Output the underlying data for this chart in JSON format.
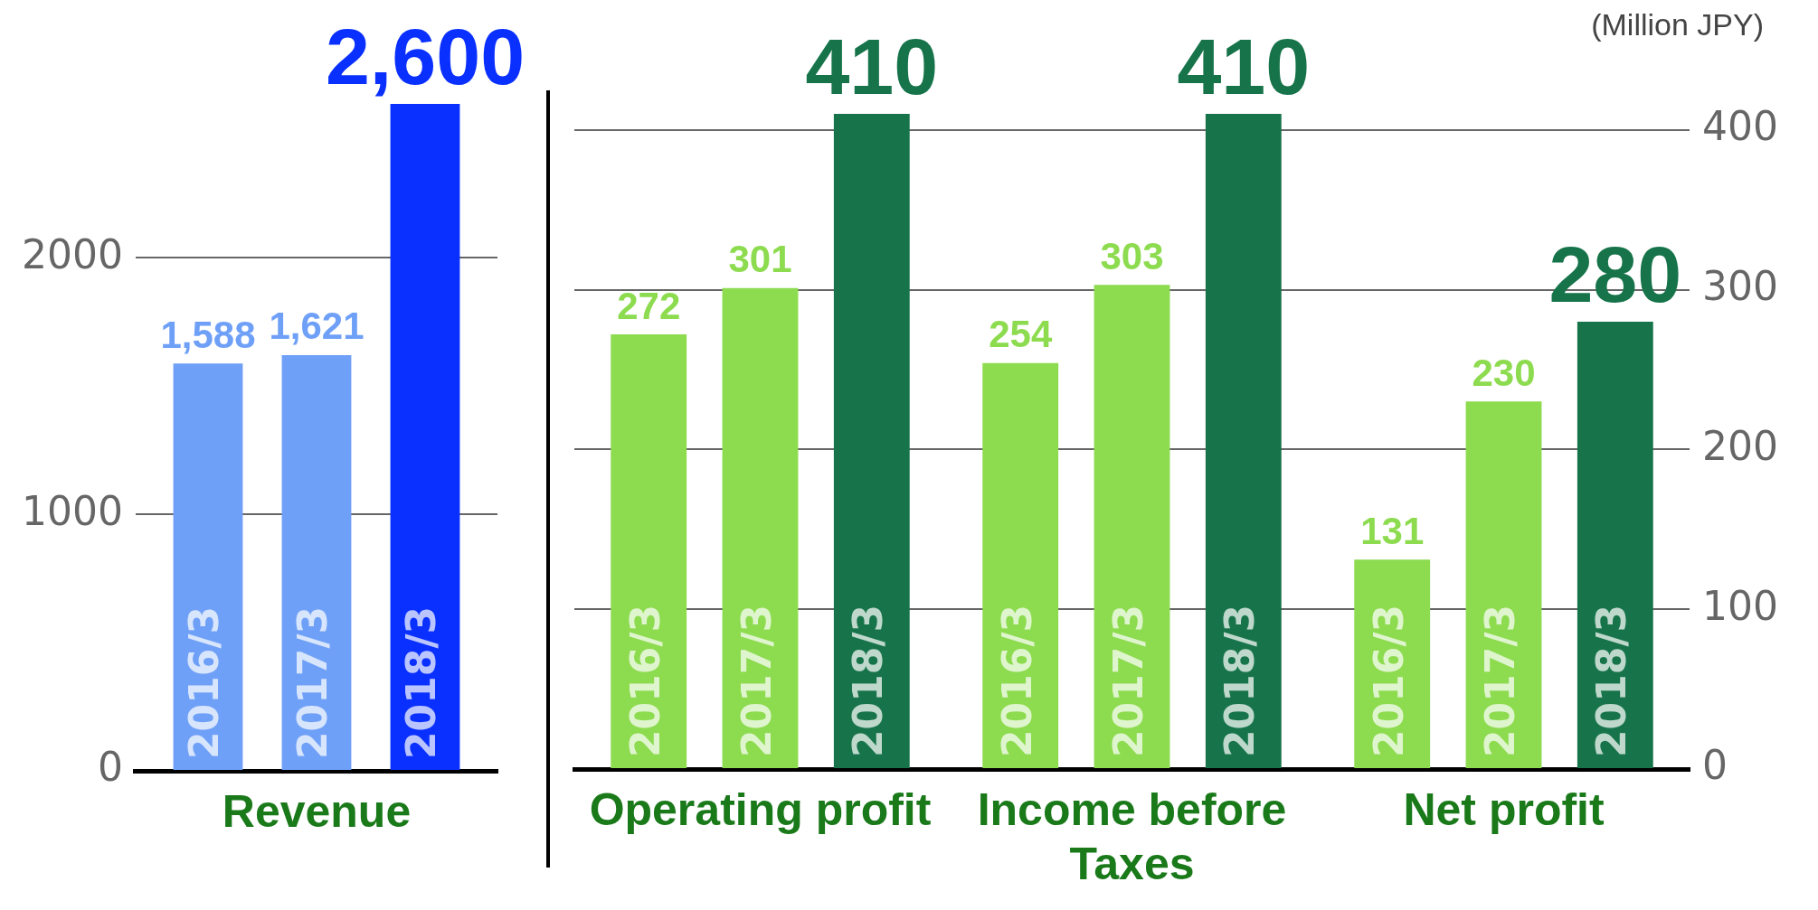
{
  "chart_data": [
    {
      "type": "bar",
      "categories": [
        "Revenue"
      ],
      "series": [
        {
          "name": "2016/3",
          "color": "#6fa0f7",
          "values": [
            1588
          ]
        },
        {
          "name": "2017/3",
          "color": "#6fa0f7",
          "values": [
            1621
          ]
        },
        {
          "name": "2018/3",
          "color": "#0a30ff",
          "values": [
            2600
          ]
        }
      ],
      "ylim": [
        0,
        2600
      ],
      "yticks": [
        0,
        1000,
        2000
      ],
      "grid": "y",
      "value_labels": [
        [
          "1,588"
        ],
        [
          "1,621"
        ],
        [
          "2,600"
        ]
      ]
    },
    {
      "type": "bar",
      "categories": [
        "Operating profit",
        "Income before Taxes",
        "Net profit"
      ],
      "series": [
        {
          "name": "2016/3",
          "color": "#8ddb4f",
          "values": [
            272,
            254,
            131
          ]
        },
        {
          "name": "2017/3",
          "color": "#8ddb4f",
          "values": [
            301,
            303,
            230
          ]
        },
        {
          "name": "2018/3",
          "color": "#17744a",
          "values": [
            410,
            410,
            280
          ]
        }
      ],
      "ylim": [
        0,
        410
      ],
      "yticks": [
        0,
        100,
        200,
        300,
        400
      ],
      "grid": "y",
      "data_labels": true,
      "annotations": [
        "(Million JPY)"
      ]
    }
  ]
}
